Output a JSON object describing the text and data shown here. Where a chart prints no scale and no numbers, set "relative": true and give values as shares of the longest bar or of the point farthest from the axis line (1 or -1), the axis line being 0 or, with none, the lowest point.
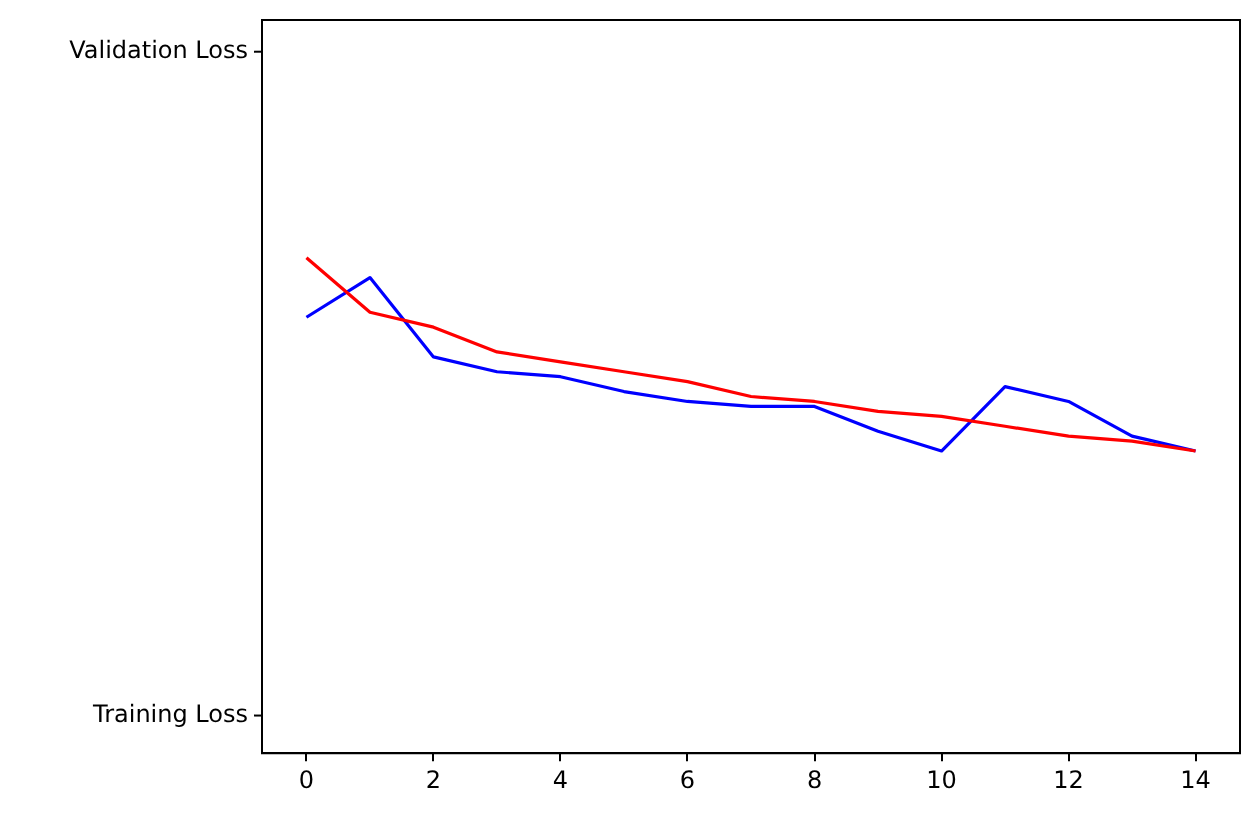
{
  "chart_data": {
    "type": "line",
    "relative": true,
    "x": [
      0,
      1,
      2,
      3,
      4,
      5,
      6,
      7,
      8,
      9,
      10,
      11,
      12,
      13,
      14
    ],
    "series": [
      {
        "color": "#ff0000",
        "values": [
          1.0,
          0.89,
          0.86,
          0.81,
          0.79,
          0.77,
          0.75,
          0.72,
          0.71,
          0.69,
          0.68,
          0.66,
          0.64,
          0.63,
          0.61
        ]
      },
      {
        "color": "#0000ff",
        "values": [
          0.88,
          0.96,
          0.8,
          0.77,
          0.76,
          0.73,
          0.71,
          0.7,
          0.7,
          0.65,
          0.61,
          0.74,
          0.71,
          0.64,
          0.61
        ]
      }
    ],
    "xlim": [
      -0.7,
      14.7
    ],
    "xticks": [
      0,
      2,
      4,
      6,
      8,
      10,
      12,
      14
    ],
    "annotations": [
      "Validation Loss",
      "Training Loss"
    ],
    "grid": false,
    "legend": false,
    "marker": "none",
    "line_style": "solid"
  }
}
